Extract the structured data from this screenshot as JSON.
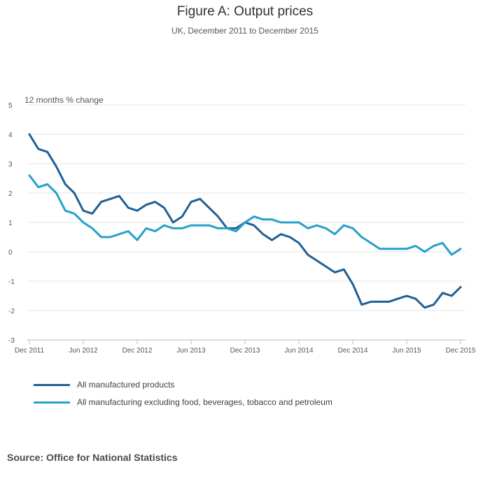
{
  "chart_data": {
    "type": "line",
    "title": "Figure A: Output prices",
    "subtitle": "UK, December 2011 to December 2015",
    "ylabel": "12 months % change",
    "xlabel": "",
    "ylim": [
      -3,
      5
    ],
    "yticks": [
      -3,
      -2,
      -1,
      0,
      1,
      2,
      3,
      4,
      5
    ],
    "xticks": [
      {
        "index": 0,
        "label": "Dec 2011"
      },
      {
        "index": 6,
        "label": "Jun 2012"
      },
      {
        "index": 12,
        "label": "Dec 2012"
      },
      {
        "index": 18,
        "label": "Jun 2013"
      },
      {
        "index": 24,
        "label": "Dec 2013"
      },
      {
        "index": 30,
        "label": "Jun 2014"
      },
      {
        "index": 36,
        "label": "Dec 2014"
      },
      {
        "index": 42,
        "label": "Jun 2015"
      },
      {
        "index": 48,
        "label": "Dec 2015"
      }
    ],
    "x_count": 49,
    "grid": true,
    "series": [
      {
        "name": "All manufactured products",
        "color": "#206095",
        "values": [
          4.0,
          3.5,
          3.4,
          2.9,
          2.3,
          2.0,
          1.4,
          1.3,
          1.7,
          1.8,
          1.9,
          1.5,
          1.4,
          1.6,
          1.7,
          1.5,
          1.0,
          1.2,
          1.7,
          1.8,
          1.5,
          1.2,
          0.8,
          0.8,
          1.0,
          0.9,
          0.6,
          0.4,
          0.6,
          0.5,
          0.3,
          -0.1,
          -0.3,
          -0.5,
          -0.7,
          -0.6,
          -1.1,
          -1.8,
          -1.7,
          -1.7,
          -1.7,
          -1.6,
          -1.5,
          -1.6,
          -1.9,
          -1.8,
          -1.4,
          -1.5,
          -1.2
        ]
      },
      {
        "name": "All manufacturing excluding food, beverages, tobacco and petroleum",
        "color": "#27a0cc",
        "values": [
          2.6,
          2.2,
          2.3,
          2.0,
          1.4,
          1.3,
          1.0,
          0.8,
          0.5,
          0.5,
          0.6,
          0.7,
          0.4,
          0.8,
          0.7,
          0.9,
          0.8,
          0.8,
          0.9,
          0.9,
          0.9,
          0.8,
          0.8,
          0.7,
          1.0,
          1.2,
          1.1,
          1.1,
          1.0,
          1.0,
          1.0,
          0.8,
          0.9,
          0.8,
          0.6,
          0.9,
          0.8,
          0.5,
          0.3,
          0.1,
          0.1,
          0.1,
          0.1,
          0.2,
          0.0,
          0.2,
          0.3,
          -0.1,
          0.1
        ]
      }
    ],
    "legend_position": "bottom-left"
  },
  "source": "Source: Office for National Statistics"
}
